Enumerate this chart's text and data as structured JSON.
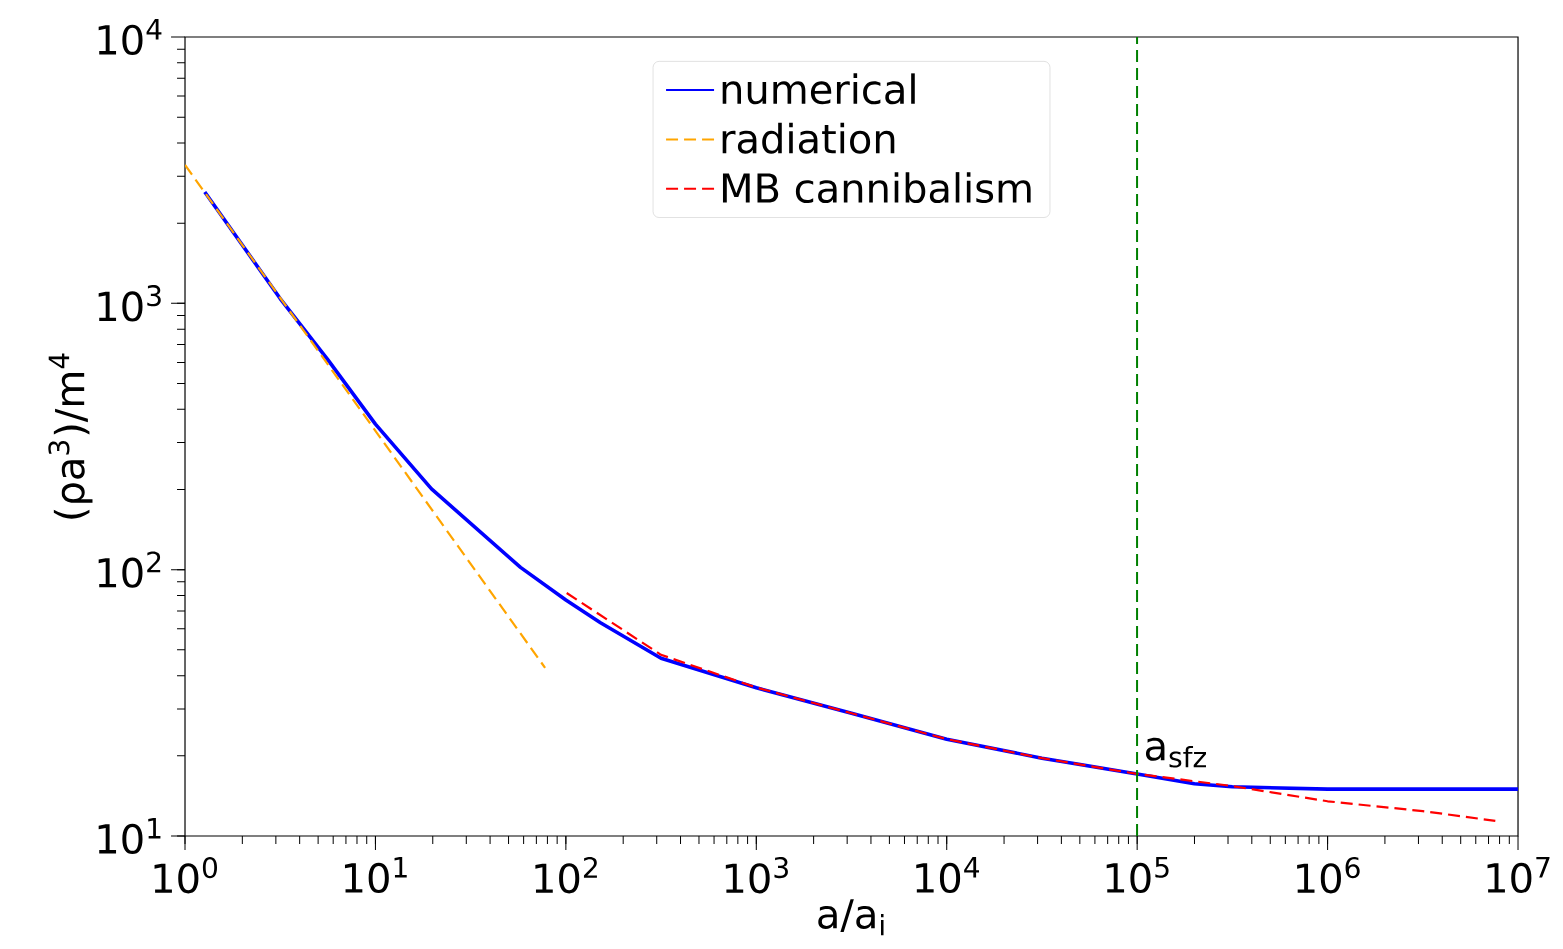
{
  "chart_data": {
    "type": "line",
    "xlabel": "a/a$_{i}$",
    "ylabel": "(ρa$^{3}$)/m$^{4}$",
    "log": "xy",
    "grid": false,
    "legend": "top",
    "xlim": [
      1,
      10000000
    ],
    "ylim": [
      10,
      10000
    ],
    "xticks": [
      {
        "value": 1,
        "label": "10$^{0}$"
      },
      {
        "value": 10,
        "label": "10$^{1}$"
      },
      {
        "value": 100,
        "label": "10$^{2}$"
      },
      {
        "value": 1000,
        "label": "10$^{3}$"
      },
      {
        "value": 10000,
        "label": "10$^{4}$"
      },
      {
        "value": 100000,
        "label": "10$^{5}$"
      },
      {
        "value": 1000000,
        "label": "10$^{6}$"
      },
      {
        "value": 10000000,
        "label": "10$^{7}$"
      }
    ],
    "yticks": [
      {
        "value": 10,
        "label": "10$^{1}$"
      },
      {
        "value": 100,
        "label": "10$^{2}$"
      },
      {
        "value": 1000,
        "label": "10$^{3}$"
      },
      {
        "value": 10000,
        "label": "10$^{4}$"
      }
    ],
    "series": [
      {
        "name": "numerical",
        "color": "#0000ff",
        "line_style": "solid",
        "x": [
          1.27,
          3.16,
          5.62,
          10,
          19.7,
          57.8,
          100,
          152,
          316,
          1000,
          3162,
          10000,
          31620,
          100000,
          200000,
          316000,
          1000000,
          10000000
        ],
        "values": [
          2620,
          1042,
          615,
          352,
          201,
          102,
          76.9,
          63.2,
          46.5,
          36,
          28.9,
          23.1,
          19.6,
          17.1,
          15.7,
          15.3,
          15,
          15
        ]
      },
      {
        "name": "radiation",
        "color": "#ffa500",
        "line_style": "dashed",
        "x": [
          1,
          77.8
        ],
        "values": [
          3310,
          42.8
        ]
      },
      {
        "name": "MB cannibalism",
        "color": "#ff0000",
        "line_style": "dashed",
        "x": [
          101,
          316,
          1000,
          3162,
          10000,
          31620,
          100000,
          316000,
          1000000,
          3160000,
          7600000
        ],
        "values": [
          81.7,
          47.9,
          36.1,
          28.9,
          23.1,
          19.6,
          17.1,
          15.4,
          13.5,
          12.4,
          11.4
        ]
      }
    ],
    "ref_lines": [
      {
        "axis": "x",
        "value": 100000,
        "label": "a$_{sfz}$",
        "color": "#008000",
        "line_style": "dashed"
      }
    ]
  }
}
